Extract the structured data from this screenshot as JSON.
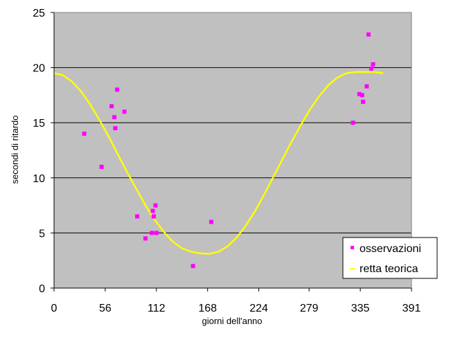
{
  "chart_data": {
    "type": "scatter",
    "xlabel": "giorni dell'anno",
    "ylabel": "secondi di ritardo",
    "xlim": [
      0,
      391
    ],
    "ylim": [
      0,
      25
    ],
    "x_ticks": [
      "0",
      "56",
      "112",
      "168",
      "224",
      "279",
      "335",
      "391"
    ],
    "y_ticks": [
      "0",
      "5",
      "10",
      "15",
      "20",
      "25"
    ],
    "grid": "horizontal",
    "legend_position": "bottom-right",
    "plot_background": "#C0C0C0",
    "series": [
      {
        "name": "osservazioni",
        "kind": "points",
        "color": "#FF00FF",
        "points": [
          [
            33,
            14
          ],
          [
            52,
            11
          ],
          [
            63,
            16.5
          ],
          [
            66,
            15.5
          ],
          [
            67,
            14.5
          ],
          [
            69,
            18
          ],
          [
            77,
            16
          ],
          [
            91,
            6.5
          ],
          [
            100,
            4.5
          ],
          [
            107,
            5
          ],
          [
            108,
            7
          ],
          [
            109,
            6.5
          ],
          [
            111,
            7.5
          ],
          [
            112,
            5
          ],
          [
            152,
            2
          ],
          [
            172,
            6
          ],
          [
            327,
            15
          ],
          [
            334,
            17.6
          ],
          [
            337,
            17.5
          ],
          [
            338,
            16.9
          ],
          [
            342,
            18.3
          ],
          [
            344,
            23
          ],
          [
            347,
            19.9
          ],
          [
            349,
            20.3
          ]
        ]
      },
      {
        "name": "retta teorica",
        "kind": "curve",
        "color": "#FFFF00",
        "points": [
          [
            0,
            19.5
          ],
          [
            10,
            19.3
          ],
          [
            20,
            18.7
          ],
          [
            30,
            17.8
          ],
          [
            40,
            16.6
          ],
          [
            50,
            15.2
          ],
          [
            60,
            13.7
          ],
          [
            70,
            12.1
          ],
          [
            80,
            10.5
          ],
          [
            90,
            9.0
          ],
          [
            100,
            7.5
          ],
          [
            110,
            6.2
          ],
          [
            120,
            5.1
          ],
          [
            130,
            4.2
          ],
          [
            140,
            3.6
          ],
          [
            150,
            3.3
          ],
          [
            160,
            3.15
          ],
          [
            170,
            3.1
          ],
          [
            180,
            3.3
          ],
          [
            190,
            3.8
          ],
          [
            200,
            4.6
          ],
          [
            210,
            5.7
          ],
          [
            220,
            7.0
          ],
          [
            230,
            8.5
          ],
          [
            240,
            10.1
          ],
          [
            250,
            11.7
          ],
          [
            260,
            13.3
          ],
          [
            270,
            14.8
          ],
          [
            280,
            16.2
          ],
          [
            290,
            17.4
          ],
          [
            300,
            18.4
          ],
          [
            310,
            19.1
          ],
          [
            320,
            19.5
          ],
          [
            330,
            19.6
          ],
          [
            340,
            19.6
          ],
          [
            350,
            19.6
          ],
          [
            360,
            19.5
          ]
        ]
      }
    ]
  }
}
